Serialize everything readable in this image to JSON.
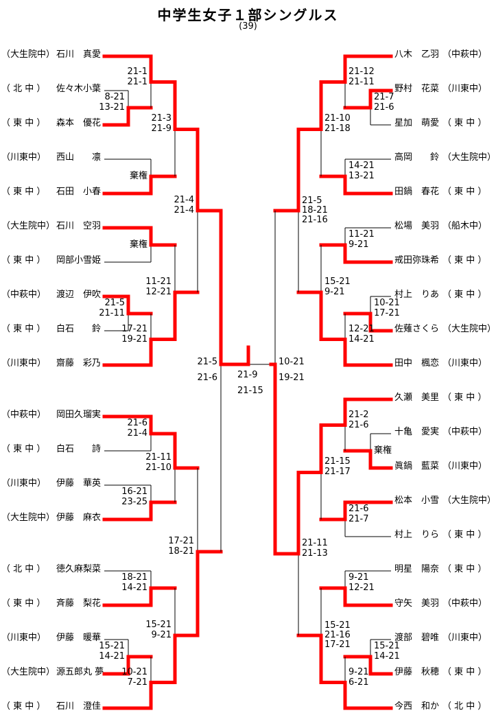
{
  "title": "中学生女子１部シングルス",
  "subtitle": "(39)",
  "walkover_label": "棄権",
  "colors": {
    "winner_path": "#ff0000",
    "line": "#000000",
    "background": "#ffffff"
  },
  "final": {
    "scores": [
      "21-9",
      "21-15"
    ],
    "champion_side": "left"
  },
  "left": {
    "players": [
      {
        "school": "大生院中",
        "school_display": "（大生院中）",
        "name": "石川 真愛",
        "name_display": "石川　真愛"
      },
      {
        "school": "北中",
        "school_display": "（ 北 中 ）",
        "name": "佐々木小葉",
        "name_display": "佐々木小葉"
      },
      {
        "school": "東中",
        "school_display": "（ 東 中 ）",
        "name": "森本 優花",
        "name_display": "森本　優花"
      },
      {
        "school": "川東中",
        "school_display": "（川東中）",
        "name": "西山 凛",
        "name_display": "西山　　凛"
      },
      {
        "school": "東中",
        "school_display": "（ 東 中 ）",
        "name": "石田 小春",
        "name_display": "石田　小春"
      },
      {
        "school": "大生院中",
        "school_display": "（大生院中）",
        "name": "石川 空羽",
        "name_display": "石川　空羽"
      },
      {
        "school": "東中",
        "school_display": "（ 東 中 ）",
        "name": "岡部小雪姫",
        "name_display": "岡部小雪姫"
      },
      {
        "school": "中萩中",
        "school_display": "（中萩中）",
        "name": "渡辺 伊吹",
        "name_display": "渡辺　伊吹"
      },
      {
        "school": "東中",
        "school_display": "（ 東 中 ）",
        "name": "白石 鈴",
        "name_display": "白石　　鈴"
      },
      {
        "school": "川東中",
        "school_display": "（川東中）",
        "name": "齋藤 彩乃",
        "name_display": "齋藤　彩乃"
      },
      {
        "school": "中萩中",
        "school_display": "（中萩中）",
        "name": "岡田久瑠実",
        "name_display": "岡田久瑠実"
      },
      {
        "school": "東中",
        "school_display": "（ 東 中 ）",
        "name": "白石 詩",
        "name_display": "白石　　詩"
      },
      {
        "school": "川東中",
        "school_display": "（川東中）",
        "name": "伊藤 華英",
        "name_display": "伊藤　華英"
      },
      {
        "school": "大生院中",
        "school_display": "（大生院中）",
        "name": "伊藤 麻衣",
        "name_display": "伊藤　麻衣"
      },
      {
        "school": "北中",
        "school_display": "（ 北 中 ）",
        "name": "徳久麻梨菜",
        "name_display": "徳久麻梨菜"
      },
      {
        "school": "東中",
        "school_display": "（ 東 中 ）",
        "name": "斉藤 梨花",
        "name_display": "斉藤　梨花"
      },
      {
        "school": "川東中",
        "school_display": "（川東中）",
        "name": "伊藤 暖華",
        "name_display": "伊藤　暖華"
      },
      {
        "school": "大生院中",
        "school_display": "（大生院中）",
        "name": "源五郎丸 夢",
        "name_display": "源五郎丸 夢"
      },
      {
        "school": "東中",
        "school_display": "（ 東 中 ）",
        "name": "石川 澄佳",
        "name_display": "石川　澄佳"
      }
    ],
    "matches": [
      {
        "id": "A",
        "top": "p1",
        "bottom": "p2",
        "winner": "bottom",
        "scores": [
          "8-21",
          "13-21"
        ],
        "round": 1
      },
      {
        "id": "B",
        "top": "p0",
        "bottom": "A",
        "winner": "top",
        "scores": [
          "21-1",
          "21-1"
        ],
        "round": 2
      },
      {
        "id": "C",
        "top": "p3",
        "bottom": "p4",
        "winner": "bottom",
        "scores": [
          "棄権"
        ],
        "round": 2
      },
      {
        "id": "D",
        "top": "B",
        "bottom": "C",
        "winner": "top",
        "scores": [
          "21-3",
          "21-9"
        ],
        "round": 3
      },
      {
        "id": "E",
        "top": "p5",
        "bottom": "p6",
        "winner": "top",
        "scores": [
          "棄権"
        ],
        "round": 2
      },
      {
        "id": "F",
        "top": "p7",
        "bottom": "p8",
        "winner": "top",
        "scores": [
          "21-5",
          "21-11"
        ],
        "round": 1
      },
      {
        "id": "G",
        "top": "F",
        "bottom": "p9",
        "winner": "bottom",
        "scores": [
          "17-21",
          "19-21"
        ],
        "round": 2
      },
      {
        "id": "H",
        "top": "E",
        "bottom": "G",
        "winner": "bottom",
        "scores": [
          "11-21",
          "12-21"
        ],
        "round": 3
      },
      {
        "id": "I",
        "top": "D",
        "bottom": "H",
        "winner": "top",
        "scores": [
          "21-4",
          "21-4"
        ],
        "round": 4
      },
      {
        "id": "J",
        "top": "p10",
        "bottom": "p11",
        "winner": "top",
        "scores": [
          "21-6",
          "21-4"
        ],
        "round": 2
      },
      {
        "id": "K",
        "top": "p12",
        "bottom": "p13",
        "winner": "bottom",
        "scores": [
          "16-21",
          "23-25"
        ],
        "round": 2
      },
      {
        "id": "L",
        "top": "J",
        "bottom": "K",
        "winner": "top",
        "scores": [
          "21-11",
          "21-10"
        ],
        "round": 3
      },
      {
        "id": "M",
        "top": "p14",
        "bottom": "p15",
        "winner": "bottom",
        "scores": [
          "18-21",
          "14-21"
        ],
        "round": 2
      },
      {
        "id": "N",
        "top": "p16",
        "bottom": "p17",
        "winner": "bottom",
        "scores": [
          "15-21",
          "14-21"
        ],
        "round": 1
      },
      {
        "id": "O",
        "top": "N",
        "bottom": "p18",
        "winner": "bottom",
        "scores": [
          "10-21",
          "7-21"
        ],
        "round": 2
      },
      {
        "id": "P",
        "top": "M",
        "bottom": "O",
        "winner": "bottom",
        "scores": [
          "15-21",
          "9-21"
        ],
        "round": 3
      },
      {
        "id": "Q",
        "top": "L",
        "bottom": "P",
        "winner": "bottom",
        "scores": [
          "17-21",
          "18-21"
        ],
        "round": 4
      },
      {
        "id": "SFL",
        "top": "I",
        "bottom": "Q",
        "winner": "top",
        "scores": [
          "21-5",
          "21-6"
        ],
        "round": 5
      }
    ]
  },
  "right": {
    "players": [
      {
        "school": "中萩中",
        "school_display": "（中萩中）",
        "name": "八木 乙羽",
        "name_display": "八木　乙羽"
      },
      {
        "school": "川東中",
        "school_display": "（川東中）",
        "name": "野村 花菜",
        "name_display": "野村　花菜"
      },
      {
        "school": "東中",
        "school_display": "（ 東 中 ）",
        "name": "星加 萌愛",
        "name_display": "星加　萌愛"
      },
      {
        "school": "大生院中",
        "school_display": "（大生院中）",
        "name": "高岡 鈴",
        "name_display": "高岡　　鈴"
      },
      {
        "school": "東中",
        "school_display": "（ 東 中 ）",
        "name": "田鍋 春花",
        "name_display": "田鍋　春花"
      },
      {
        "school": "船木中",
        "school_display": "（船木中）",
        "name": "松場 美羽",
        "name_display": "松場　美羽"
      },
      {
        "school": "東中",
        "school_display": "（ 東 中 ）",
        "name": "戒田弥珠希",
        "name_display": "戒田弥珠希"
      },
      {
        "school": "東中",
        "school_display": "（ 東 中 ）",
        "name": "村上 りあ",
        "name_display": "村上　りあ"
      },
      {
        "school": "大生院中",
        "school_display": "（大生院中）",
        "name": "佐薙さくら",
        "name_display": "佐薙さくら"
      },
      {
        "school": "川東中",
        "school_display": "（川東中）",
        "name": "田中 楓恋",
        "name_display": "田中　楓恋"
      },
      {
        "school": "東中",
        "school_display": "（ 東 中 ）",
        "name": "久瀬 美里",
        "name_display": "久瀬　美里"
      },
      {
        "school": "中萩中",
        "school_display": "（中萩中）",
        "name": "十亀 愛実",
        "name_display": "十亀　愛実"
      },
      {
        "school": "川東中",
        "school_display": "（川東中）",
        "name": "眞鍋 藍菜",
        "name_display": "眞鍋　藍菜"
      },
      {
        "school": "大生院中",
        "school_display": "（大生院中）",
        "name": "松本 小雪",
        "name_display": "松本　小雪"
      },
      {
        "school": "東中",
        "school_display": "（ 東 中 ）",
        "name": "村上 りら",
        "name_display": "村上　りら"
      },
      {
        "school": "東中",
        "school_display": "（ 東 中 ）",
        "name": "明星 陽奈",
        "name_display": "明星　陽奈"
      },
      {
        "school": "中萩中",
        "school_display": "（中萩中）",
        "name": "守矢 美羽",
        "name_display": "守矢　美羽"
      },
      {
        "school": "川東中",
        "school_display": "（川東中）",
        "name": "渡部 碧唯",
        "name_display": "渡部　碧唯"
      },
      {
        "school": "東中",
        "school_display": "（ 東 中 ）",
        "name": "伊藤 秋穂",
        "name_display": "伊藤　秋穂"
      },
      {
        "school": "北中",
        "school_display": "（ 北 中 ）",
        "name": "今西 和か",
        "name_display": "今西　和か"
      }
    ],
    "matches": [
      {
        "id": "a",
        "top": "p1",
        "bottom": "p2",
        "winner": "top",
        "scores": [
          "21-7",
          "21-6"
        ],
        "round": 1
      },
      {
        "id": "b",
        "top": "p0",
        "bottom": "a",
        "winner": "top",
        "scores": [
          "21-12",
          "21-11"
        ],
        "round": 2
      },
      {
        "id": "c",
        "top": "p3",
        "bottom": "p4",
        "winner": "bottom",
        "scores": [
          "14-21",
          "13-21"
        ],
        "round": 2
      },
      {
        "id": "d",
        "top": "b",
        "bottom": "c",
        "winner": "top",
        "scores": [
          "21-10",
          "21-18"
        ],
        "round": 3
      },
      {
        "id": "e",
        "top": "p5",
        "bottom": "p6",
        "winner": "bottom",
        "scores": [
          "11-21",
          "9-21"
        ],
        "round": 2
      },
      {
        "id": "f",
        "top": "p7",
        "bottom": "p8",
        "winner": "bottom",
        "scores": [
          "10-21",
          "17-21"
        ],
        "round": 1
      },
      {
        "id": "g",
        "top": "f",
        "bottom": "p9",
        "winner": "bottom",
        "scores": [
          "12-21",
          "14-21"
        ],
        "round": 2
      },
      {
        "id": "h",
        "top": "e",
        "bottom": "g",
        "winner": "bottom",
        "scores": [
          "15-21",
          "9-21"
        ],
        "round": 3
      },
      {
        "id": "i",
        "top": "d",
        "bottom": "h",
        "winner": "top",
        "scores": [
          "21-5",
          "18-21",
          "21-16"
        ],
        "round": 4
      },
      {
        "id": "j",
        "top": "p11",
        "bottom": "p12",
        "winner": "bottom",
        "scores": [
          "棄権"
        ],
        "round": 1
      },
      {
        "id": "k",
        "top": "p10",
        "bottom": "j",
        "winner": "top",
        "scores": [
          "21-2",
          "21-6"
        ],
        "round": 2
      },
      {
        "id": "l",
        "top": "p13",
        "bottom": "p14",
        "winner": "top",
        "scores": [
          "21-6",
          "21-7"
        ],
        "round": 2
      },
      {
        "id": "m",
        "top": "k",
        "bottom": "l",
        "winner": "top",
        "scores": [
          "21-15",
          "21-17"
        ],
        "round": 3
      },
      {
        "id": "n",
        "top": "p15",
        "bottom": "p16",
        "winner": "bottom",
        "scores": [
          "9-21",
          "12-21"
        ],
        "round": 2
      },
      {
        "id": "o",
        "top": "p17",
        "bottom": "p18",
        "winner": "bottom",
        "scores": [
          "15-21",
          "14-21"
        ],
        "round": 1
      },
      {
        "id": "p",
        "top": "o",
        "bottom": "p19",
        "winner": "bottom",
        "scores": [
          "9-21",
          "6-21"
        ],
        "round": 2
      },
      {
        "id": "q",
        "top": "n",
        "bottom": "p",
        "winner": "bottom",
        "scores": [
          "15-21",
          "21-16",
          "17-21"
        ],
        "round": 3
      },
      {
        "id": "r",
        "top": "m",
        "bottom": "q",
        "winner": "top",
        "scores": [
          "21-11",
          "21-13"
        ],
        "round": 4
      },
      {
        "id": "SFR",
        "top": "i",
        "bottom": "r",
        "winner": "bottom",
        "scores": [
          "10-21",
          "19-21"
        ],
        "round": 5
      }
    ]
  }
}
